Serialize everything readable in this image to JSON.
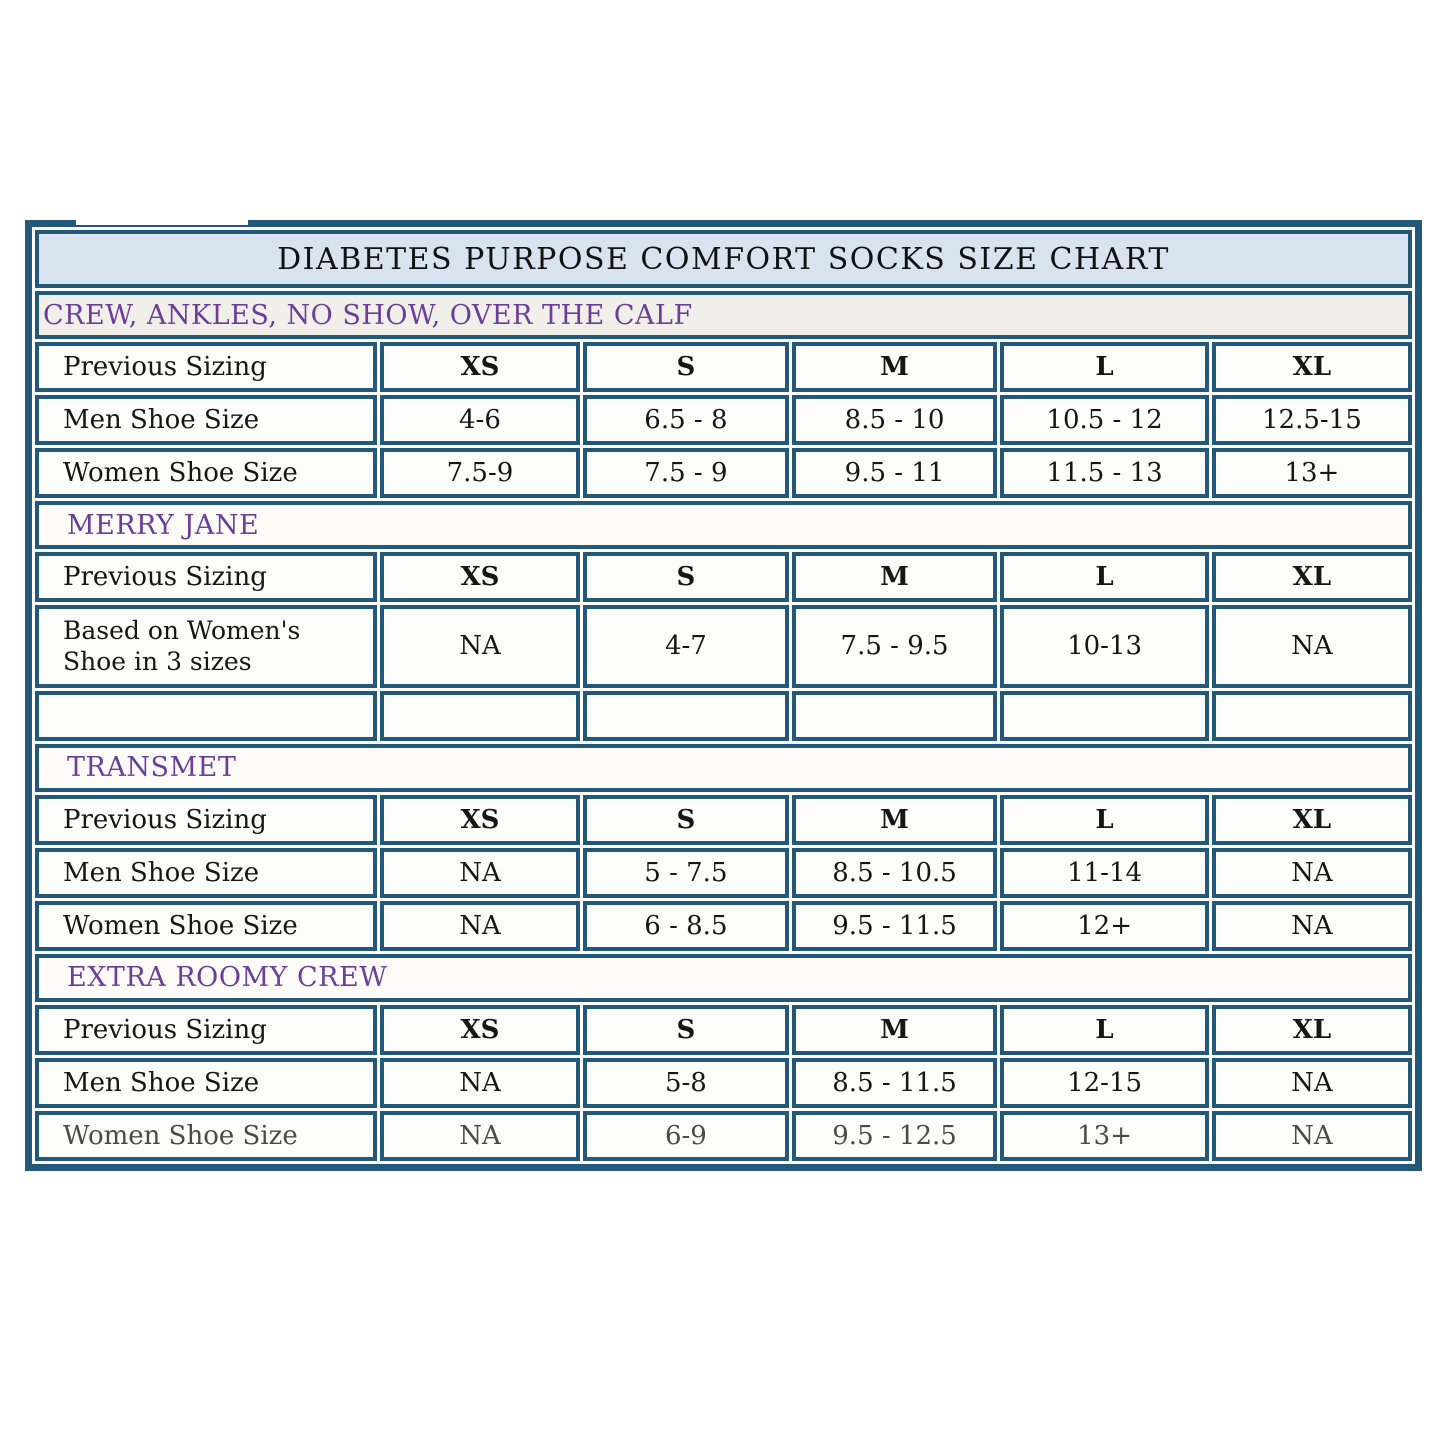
{
  "colors": {
    "border_navy": "#235878",
    "title_bg": "#D9E3EF",
    "first_strip_bg": "#F0EFE9",
    "strip_bg": "#FCFBF8",
    "section_purple": "#6B3E9B",
    "text_black": "#161616"
  },
  "table": {
    "title": "DIABETES PURPOSE COMFORT SOCKS SIZE CHART",
    "size_header_label": "Previous Sizing",
    "sizes": [
      "XS",
      "S",
      "M",
      "L",
      "XL"
    ],
    "sections": [
      {
        "name": "CREW, ANKLES, NO SHOW, OVER THE CALF",
        "rows": [
          {
            "label": "Men Shoe Size",
            "values": [
              "4-6",
              "6.5 - 8",
              "8.5 - 10",
              "10.5 - 12",
              "12.5-15"
            ]
          },
          {
            "label": "Women Shoe Size",
            "values": [
              "7.5-9",
              "7.5 - 9",
              "9.5 - 11",
              "11.5 - 13",
              "13+"
            ]
          }
        ]
      },
      {
        "name": "MERRY JANE",
        "rows": [
          {
            "label": "Based on Women's Shoe in 3 sizes",
            "values": [
              "NA",
              "4-7",
              "7.5 - 9.5",
              "10-13",
              "NA"
            ],
            "tall": true
          },
          {
            "label": "",
            "values": [
              "",
              "",
              "",
              "",
              ""
            ],
            "empty": true
          }
        ]
      },
      {
        "name": "TRANSMET",
        "rows": [
          {
            "label": "Men Shoe Size",
            "values": [
              "NA",
              "5 - 7.5",
              "8.5 - 10.5",
              "11-14",
              "NA"
            ]
          },
          {
            "label": "Women Shoe Size",
            "values": [
              "NA",
              "6 - 8.5",
              "9.5 - 11.5",
              "12+",
              "NA"
            ]
          }
        ]
      },
      {
        "name": "EXTRA ROOMY CREW",
        "rows": [
          {
            "label": "Men Shoe Size",
            "values": [
              "NA",
              "5-8",
              "8.5 - 11.5",
              "12-15",
              "NA"
            ]
          },
          {
            "label": "Women Shoe Size",
            "values": [
              "NA",
              "6-9",
              "9.5 - 12.5",
              "13+",
              "NA"
            ],
            "muted": true
          }
        ]
      }
    ]
  }
}
